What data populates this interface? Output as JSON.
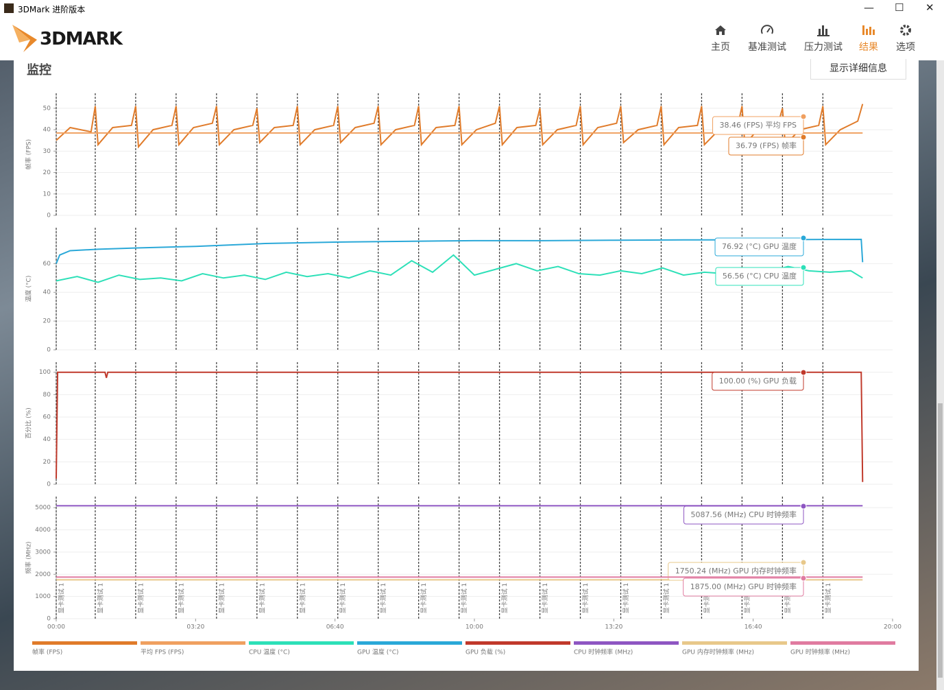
{
  "window": {
    "title": "3DMark 进阶版本"
  },
  "logo": "3DMARK",
  "nav": [
    "主页",
    "基准测试",
    "压力测试",
    "结果",
    "选项"
  ],
  "section_title": "监控",
  "details_button": "显示详细信息",
  "chart_data": [
    {
      "type": "line",
      "y_label": "帧率 (FPS)",
      "ylim": [
        0,
        57
      ],
      "yticks": [
        0,
        10,
        20,
        30,
        40,
        50
      ],
      "xlim": [
        0,
        1200
      ],
      "markers": [
        0,
        56,
        114,
        172,
        230,
        288,
        346,
        404,
        462,
        520,
        578,
        636,
        694,
        752,
        810,
        868,
        926,
        984,
        1042,
        1100
      ],
      "series": [
        {
          "name": "帧率 (FPS)",
          "color": "#e07b2a",
          "tooltip": "36.79 (FPS) 帧率",
          "x": [
            0,
            20,
            50,
            56,
            60,
            81,
            108,
            114,
            118,
            139,
            166,
            172,
            176,
            197,
            224,
            230,
            234,
            255,
            282,
            288,
            292,
            313,
            340,
            346,
            350,
            371,
            398,
            404,
            408,
            429,
            456,
            462,
            466,
            487,
            514,
            520,
            524,
            545,
            572,
            578,
            582,
            603,
            630,
            636,
            640,
            661,
            688,
            694,
            698,
            719,
            746,
            752,
            756,
            777,
            804,
            810,
            814,
            835,
            862,
            868,
            872,
            893,
            920,
            926,
            930,
            951,
            978,
            984,
            988,
            1009,
            1036,
            1042,
            1046,
            1067,
            1094,
            1100,
            1104,
            1125,
            1150,
            1157
          ],
          "values": [
            35,
            41,
            39,
            51,
            33,
            41,
            42,
            51,
            32,
            40,
            42,
            51,
            33,
            41,
            43,
            51,
            33,
            40,
            42,
            50,
            34,
            41,
            42,
            51,
            33,
            40,
            42,
            51,
            34,
            41,
            43,
            51,
            33,
            40,
            42,
            51,
            33,
            41,
            42,
            51,
            33,
            40,
            43,
            51,
            33,
            41,
            42,
            50,
            33,
            40,
            42,
            51,
            33,
            41,
            43,
            51,
            34,
            40,
            42,
            51,
            33,
            41,
            42,
            51,
            33,
            40,
            42,
            51,
            33,
            41,
            43,
            50,
            33,
            40,
            42,
            51,
            33,
            40,
            44,
            52
          ]
        },
        {
          "name": "平均 FPS (FPS)",
          "color": "#f0a060",
          "tooltip": "38.46 (FPS) 平均 FPS",
          "x": [
            0,
            1157
          ],
          "values": [
            38.46,
            38.46
          ]
        }
      ]
    },
    {
      "type": "line",
      "y_label": "温度 (°C)",
      "ylim": [
        0,
        85
      ],
      "yticks": [
        0,
        20,
        40,
        60
      ],
      "xlim": [
        0,
        1200
      ],
      "markers": [
        0,
        56,
        114,
        172,
        230,
        288,
        346,
        404,
        462,
        520,
        578,
        636,
        694,
        752,
        810,
        868,
        926,
        984,
        1042,
        1100
      ],
      "series": [
        {
          "name": "CPU 温度 (°C)",
          "color": "#2de0b8",
          "tooltip": "56.56 (°C) CPU 温度",
          "x": [
            0,
            30,
            60,
            90,
            120,
            150,
            180,
            210,
            240,
            270,
            300,
            330,
            360,
            390,
            420,
            450,
            480,
            510,
            540,
            570,
            600,
            630,
            660,
            690,
            720,
            750,
            780,
            810,
            840,
            870,
            900,
            930,
            960,
            990,
            1020,
            1050,
            1080,
            1110,
            1140,
            1157
          ],
          "values": [
            48,
            51,
            47,
            52,
            49,
            50,
            48,
            53,
            50,
            52,
            49,
            54,
            51,
            53,
            50,
            55,
            52,
            62,
            54,
            66,
            52,
            56,
            60,
            55,
            58,
            53,
            52,
            55,
            53,
            57,
            52,
            54,
            53,
            56,
            54,
            58,
            55,
            54,
            55,
            50
          ]
        },
        {
          "name": "GPU 温度 (°C)",
          "color": "#2aa8d8",
          "tooltip": "76.92 (°C) GPU 温度",
          "x": [
            0,
            5,
            20,
            60,
            120,
            200,
            300,
            400,
            500,
            600,
            700,
            800,
            900,
            1000,
            1100,
            1155,
            1157
          ],
          "values": [
            60,
            66,
            69,
            70,
            71,
            72,
            74,
            75,
            75.5,
            76,
            76,
            76.3,
            76.5,
            76.6,
            76.8,
            76.9,
            61
          ]
        }
      ]
    },
    {
      "type": "line",
      "y_label": "百分比 (%)",
      "ylim": [
        0,
        109
      ],
      "yticks": [
        0,
        20,
        40,
        60,
        80,
        100
      ],
      "xlim": [
        0,
        1200
      ],
      "markers": [
        0,
        56,
        114,
        172,
        230,
        288,
        346,
        404,
        462,
        520,
        578,
        636,
        694,
        752,
        810,
        868,
        926,
        984,
        1042,
        1100
      ],
      "series": [
        {
          "name": "GPU 负载 (%)",
          "color": "#c0392b",
          "tooltip": "100.00 (%) GPU 负载",
          "x": [
            0,
            2,
            70,
            72,
            74,
            76,
            1155,
            1157
          ],
          "values": [
            5,
            100,
            100,
            95,
            100,
            100,
            100,
            2
          ]
        }
      ]
    },
    {
      "type": "line",
      "y_label": "频率 (MHz)",
      "ylim": [
        0,
        5500
      ],
      "yticks": [
        0,
        1000,
        2000,
        3000,
        4000,
        5000
      ],
      "xlim": [
        0,
        1200
      ],
      "xticks": [
        {
          "value": 0,
          "label": "00:00"
        },
        {
          "value": 200,
          "label": "03:20"
        },
        {
          "value": 400,
          "label": "06:40"
        },
        {
          "value": 600,
          "label": "10:00"
        },
        {
          "value": 800,
          "label": "13:20"
        },
        {
          "value": 1000,
          "label": "16:40"
        },
        {
          "value": 1200,
          "label": "20:00"
        }
      ],
      "markers": [
        0,
        56,
        114,
        172,
        230,
        288,
        346,
        404,
        462,
        520,
        578,
        636,
        694,
        752,
        810,
        868,
        926,
        984,
        1042,
        1100
      ],
      "marker_label": "显卡测试 1",
      "series": [
        {
          "name": "CPU 时钟频率 (MHz)",
          "color": "#8e56c2",
          "tooltip": "5087.56 (MHz) CPU 时钟频率",
          "x": [
            0,
            1157
          ],
          "values": [
            5087.56,
            5087.56
          ]
        },
        {
          "name": "GPU 内存时钟频率 (MHz)",
          "color": "#e8c88a",
          "tooltip": "1750.24 (MHz) GPU 内存时钟频率",
          "x": [
            0,
            1157
          ],
          "values": [
            1750.24,
            1750.24
          ]
        },
        {
          "name": "GPU 时钟频率 (MHz)",
          "color": "#e07ba0",
          "tooltip": "1875.00 (MHz) GPU 时钟频率",
          "x": [
            0,
            1157
          ],
          "values": [
            1875,
            1875
          ]
        }
      ]
    }
  ]
}
